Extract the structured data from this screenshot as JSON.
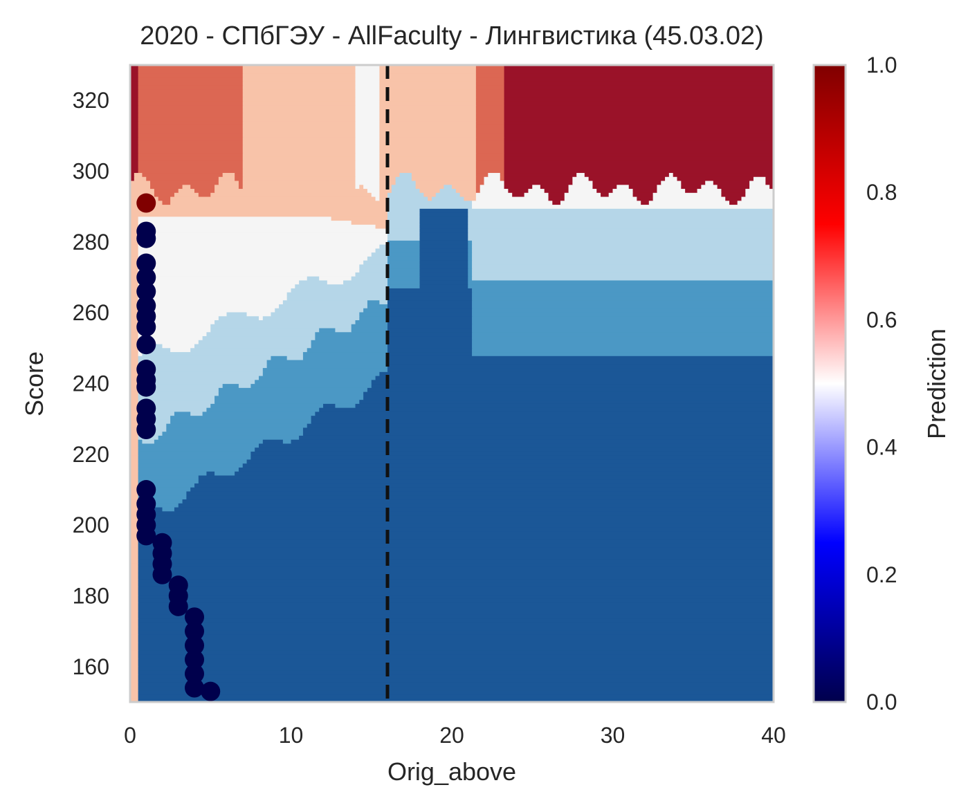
{
  "chart_data": {
    "type": "heatmap",
    "title": "2020 - СПбГЭУ - AllFaculty - Лингвистика (45.03.02)",
    "xlabel": "Orig_above",
    "ylabel": "Score",
    "xlim": [
      0,
      40
    ],
    "ylim": [
      150,
      330
    ],
    "xticks": [
      0,
      10,
      20,
      30,
      40
    ],
    "yticks": [
      160,
      180,
      200,
      220,
      240,
      260,
      280,
      300,
      320
    ],
    "grid": false,
    "threshold_line": {
      "x": 16,
      "style": "dashed",
      "color": "#111111"
    },
    "colorbar": {
      "label": "Prediction",
      "range": [
        0,
        1
      ],
      "ticks": [
        "0.0",
        "0.2",
        "0.4",
        "0.6",
        "0.8",
        "1.0"
      ],
      "colormap": "seismic"
    },
    "contour_levels": [
      {
        "min": 0.0,
        "max": 0.15,
        "color": "#1b5797"
      },
      {
        "min": 0.15,
        "max": 0.3,
        "color": "#4b98c5"
      },
      {
        "min": 0.3,
        "max": 0.45,
        "color": "#b5d6e8"
      },
      {
        "min": 0.45,
        "max": 0.55,
        "color": "#f5f5f5"
      },
      {
        "min": 0.55,
        "max": 0.7,
        "color": "#f8c3a9"
      },
      {
        "min": 0.7,
        "max": 0.85,
        "color": "#dc6753"
      },
      {
        "min": 0.85,
        "max": 1.0,
        "color": "#9a1229"
      }
    ],
    "scatter_points": [
      {
        "x": 1,
        "y": 291,
        "prediction": 1
      },
      {
        "x": 1,
        "y": 283,
        "prediction": 0
      },
      {
        "x": 1,
        "y": 281,
        "prediction": 0
      },
      {
        "x": 1,
        "y": 274,
        "prediction": 0
      },
      {
        "x": 1,
        "y": 270,
        "prediction": 0
      },
      {
        "x": 1,
        "y": 266,
        "prediction": 0
      },
      {
        "x": 1,
        "y": 262,
        "prediction": 0
      },
      {
        "x": 1,
        "y": 259,
        "prediction": 0
      },
      {
        "x": 1,
        "y": 256,
        "prediction": 0
      },
      {
        "x": 1,
        "y": 251,
        "prediction": 0
      },
      {
        "x": 1,
        "y": 244,
        "prediction": 0
      },
      {
        "x": 1,
        "y": 241,
        "prediction": 0
      },
      {
        "x": 1,
        "y": 239,
        "prediction": 0
      },
      {
        "x": 1,
        "y": 233,
        "prediction": 0
      },
      {
        "x": 1,
        "y": 230,
        "prediction": 0
      },
      {
        "x": 1,
        "y": 227,
        "prediction": 0
      },
      {
        "x": 1,
        "y": 210,
        "prediction": 0
      },
      {
        "x": 1,
        "y": 206,
        "prediction": 0
      },
      {
        "x": 1,
        "y": 203,
        "prediction": 0
      },
      {
        "x": 1,
        "y": 200,
        "prediction": 0
      },
      {
        "x": 1,
        "y": 197,
        "prediction": 0
      },
      {
        "x": 2,
        "y": 195,
        "prediction": 0
      },
      {
        "x": 2,
        "y": 192,
        "prediction": 0
      },
      {
        "x": 2,
        "y": 189,
        "prediction": 0
      },
      {
        "x": 2,
        "y": 186,
        "prediction": 0
      },
      {
        "x": 3,
        "y": 183,
        "prediction": 0
      },
      {
        "x": 3,
        "y": 180,
        "prediction": 0
      },
      {
        "x": 3,
        "y": 177,
        "prediction": 0
      },
      {
        "x": 4,
        "y": 174,
        "prediction": 0
      },
      {
        "x": 4,
        "y": 170,
        "prediction": 0
      },
      {
        "x": 4,
        "y": 166,
        "prediction": 0
      },
      {
        "x": 4,
        "y": 162,
        "prediction": 0
      },
      {
        "x": 4,
        "y": 158,
        "prediction": 0
      },
      {
        "x": 4,
        "y": 154,
        "prediction": 0
      },
      {
        "x": 5,
        "y": 153,
        "prediction": 0
      }
    ]
  }
}
